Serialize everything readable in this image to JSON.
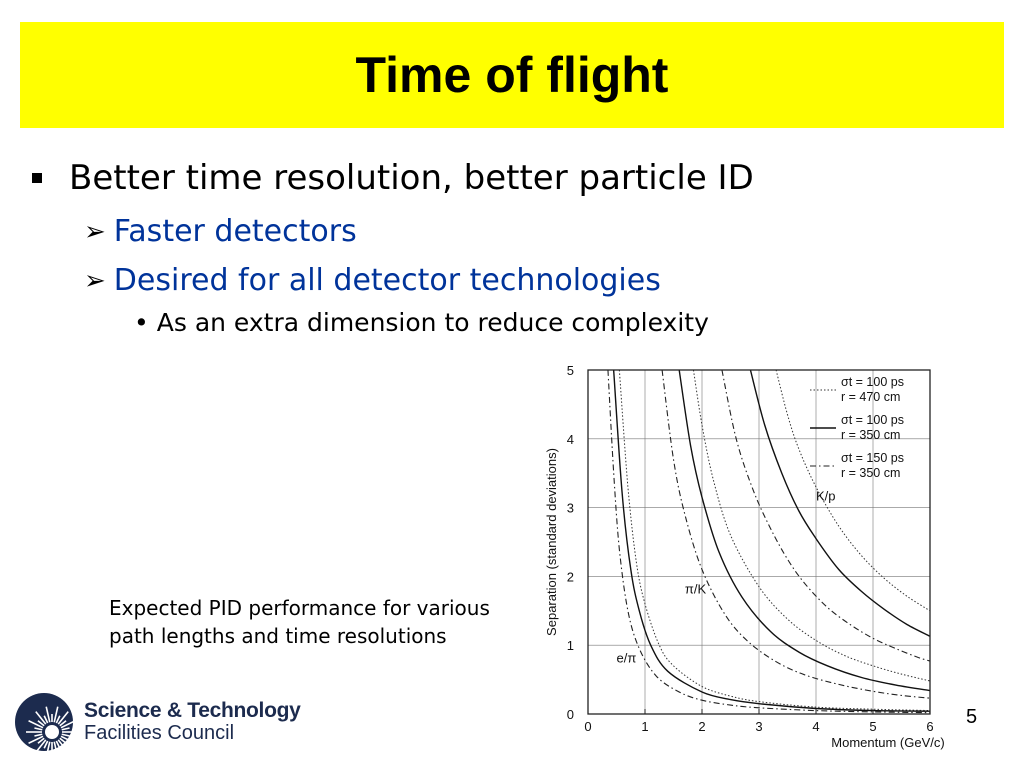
{
  "title": "Time of flight",
  "bullets": {
    "l1": "Better time resolution, better particle ID",
    "l2a": "Faster detectors",
    "l2b": "Desired for all detector technologies",
    "l3": "As an extra dimension to reduce complexity"
  },
  "caption": {
    "line1": "Expected PID performance for various",
    "line2": "path lengths and time resolutions"
  },
  "slide_number": "5",
  "logo": {
    "line1": "Science & Technology",
    "line2": "Facilities Council"
  },
  "chart_data": {
    "type": "line",
    "xlabel": "Momentum (GeV/c)",
    "ylabel": "Separation (standard deviations)",
    "xlim": [
      0,
      6
    ],
    "ylim": [
      0,
      5
    ],
    "xticks": [
      "0",
      "1",
      "2",
      "3",
      "4",
      "5",
      "6"
    ],
    "yticks": [
      "0",
      "1",
      "2",
      "3",
      "4",
      "5"
    ],
    "grid": true,
    "legend": [
      {
        "style": "dotted",
        "line1": "σt = 100 ps",
        "line2": "r  = 470 cm"
      },
      {
        "style": "solid",
        "line1": "σt = 100 ps",
        "line2": "r  = 350 cm"
      },
      {
        "style": "dashdot",
        "line1": "σt = 150 ps",
        "line2": "r  = 350 cm"
      }
    ],
    "annotations": [
      {
        "text": "K/p",
        "x": 4.0,
        "y": 3.1
      },
      {
        "text": "π/K",
        "x": 1.7,
        "y": 1.75
      },
      {
        "text": "e/π",
        "x": 0.5,
        "y": 0.75
      }
    ],
    "series": [
      {
        "name": "e/π dotted",
        "style": "dotted",
        "x": [
          0.55,
          0.7,
          0.85,
          1.0,
          1.25,
          1.5,
          2.0,
          2.5,
          3.0,
          4.0,
          5.0,
          6.0
        ],
        "y": [
          5.0,
          3.3,
          2.2,
          1.6,
          1.0,
          0.7,
          0.4,
          0.26,
          0.18,
          0.1,
          0.07,
          0.05
        ]
      },
      {
        "name": "e/π solid",
        "style": "solid",
        "x": [
          0.45,
          0.6,
          0.75,
          0.9,
          1.1,
          1.4,
          2.0,
          2.5,
          3.0,
          4.0,
          5.0,
          6.0
        ],
        "y": [
          5.0,
          3.2,
          2.1,
          1.5,
          1.0,
          0.62,
          0.32,
          0.21,
          0.15,
          0.08,
          0.05,
          0.04
        ]
      },
      {
        "name": "e/π dashdot",
        "style": "dashdot",
        "x": [
          0.35,
          0.45,
          0.55,
          0.7,
          0.9,
          1.2,
          1.6,
          2.0,
          2.5,
          3.0,
          4.0,
          5.0,
          6.0
        ],
        "y": [
          5.0,
          3.5,
          2.4,
          1.5,
          0.95,
          0.55,
          0.32,
          0.2,
          0.13,
          0.09,
          0.05,
          0.03,
          0.02
        ]
      },
      {
        "name": "π/K dotted",
        "style": "dotted",
        "x": [
          1.85,
          2.0,
          2.2,
          2.5,
          3.0,
          3.5,
          4.0,
          4.5,
          5.0,
          5.5,
          6.0
        ],
        "y": [
          5.0,
          4.2,
          3.4,
          2.6,
          1.85,
          1.38,
          1.07,
          0.85,
          0.7,
          0.58,
          0.48
        ]
      },
      {
        "name": "π/K solid",
        "style": "solid",
        "x": [
          1.6,
          1.8,
          2.0,
          2.3,
          2.7,
          3.2,
          3.7,
          4.2,
          4.8,
          5.4,
          6.0
        ],
        "y": [
          5.0,
          3.9,
          3.15,
          2.35,
          1.7,
          1.2,
          0.9,
          0.7,
          0.53,
          0.42,
          0.34
        ]
      },
      {
        "name": "π/K dashdot",
        "style": "dashdot",
        "x": [
          1.3,
          1.5,
          1.7,
          2.0,
          2.4,
          2.8,
          3.3,
          3.8,
          4.4,
          5.0,
          5.5,
          6.0
        ],
        "y": [
          5.0,
          3.7,
          2.9,
          2.1,
          1.45,
          1.06,
          0.76,
          0.57,
          0.43,
          0.33,
          0.27,
          0.23
        ]
      },
      {
        "name": "K/p dotted",
        "style": "dotted",
        "x": [
          3.3,
          3.5,
          3.7,
          4.0,
          4.4,
          4.8,
          5.2,
          5.6,
          6.0
        ],
        "y": [
          5.0,
          4.35,
          3.85,
          3.3,
          2.73,
          2.3,
          1.97,
          1.71,
          1.5
        ]
      },
      {
        "name": "K/p solid",
        "style": "solid",
        "x": [
          2.85,
          3.1,
          3.4,
          3.7,
          4.0,
          4.4,
          4.8,
          5.2,
          5.6,
          6.0
        ],
        "y": [
          5.0,
          4.2,
          3.5,
          2.95,
          2.55,
          2.1,
          1.78,
          1.52,
          1.3,
          1.13
        ]
      },
      {
        "name": "K/p dashdot",
        "style": "dashdot",
        "x": [
          2.35,
          2.6,
          2.9,
          3.2,
          3.5,
          3.8,
          4.2,
          4.6,
          5.0,
          5.4,
          5.8,
          6.0
        ],
        "y": [
          5.0,
          4.0,
          3.25,
          2.7,
          2.25,
          1.9,
          1.55,
          1.3,
          1.1,
          0.95,
          0.82,
          0.77
        ]
      }
    ]
  }
}
